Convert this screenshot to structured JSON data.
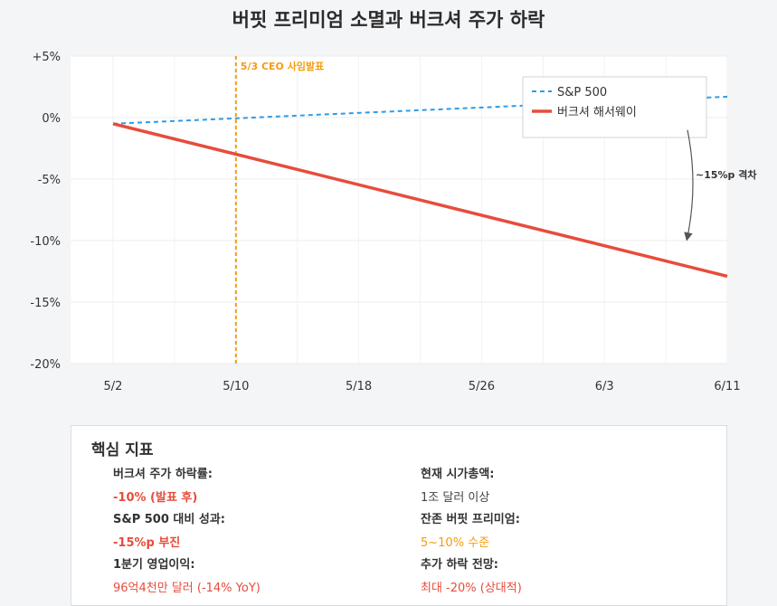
{
  "title": "버핏 프리미엄 소멸과 버크셔 주가 하락",
  "chart_data": {
    "type": "line",
    "x": [
      "5/2",
      "6/11"
    ],
    "x_ticks": [
      "5/2",
      "5/10",
      "5/18",
      "5/26",
      "6/3",
      "6/11"
    ],
    "y_ticks": [
      "+5%",
      "0%",
      "-5%",
      "-10%",
      "-15%",
      "-20%"
    ],
    "ylim": [
      -20,
      5
    ],
    "grid": true,
    "legend_position": "top-right",
    "series": [
      {
        "name": "S&P 500",
        "x": [
          "5/2",
          "6/11"
        ],
        "values": [
          -0.5,
          1.7
        ],
        "color": "#2e9be6",
        "style": "dashed"
      },
      {
        "name": "버크셔 해서웨이",
        "x": [
          "5/2",
          "6/11"
        ],
        "values": [
          -0.5,
          -12.9
        ],
        "color": "#e74c3c",
        "style": "solid"
      }
    ],
    "annotations": [
      {
        "text": "5/3 CEO 사임발표",
        "x": "5/10",
        "color": "#f39c12",
        "type": "vertical-line"
      },
      {
        "text": "~15%p 격차",
        "type": "arrow",
        "from_value": -1.0,
        "to_value": -9.7,
        "color": "#555555"
      }
    ]
  },
  "metrics": {
    "title": "핵심 지표",
    "items": [
      {
        "label": "버크셔 주가 하락률:",
        "value": "-10% (발표 후)",
        "style": "red-b"
      },
      {
        "label": "현재 시가총액:",
        "value": "1조 달러 이상",
        "style": "plain"
      },
      {
        "label": "S&P 500 대비 성과:",
        "value": "-15%p 부진",
        "style": "red-b"
      },
      {
        "label": "잔존 버핏 프리미엄:",
        "value": "5~10% 수준",
        "style": "orange"
      },
      {
        "label": "1분기 영업이익:",
        "value": "96억4천만 달러 (-14% YoY)",
        "style": "red"
      },
      {
        "label": "추가 하락 전망:",
        "value": "최대 -20% (상대적)",
        "style": "red"
      }
    ]
  }
}
